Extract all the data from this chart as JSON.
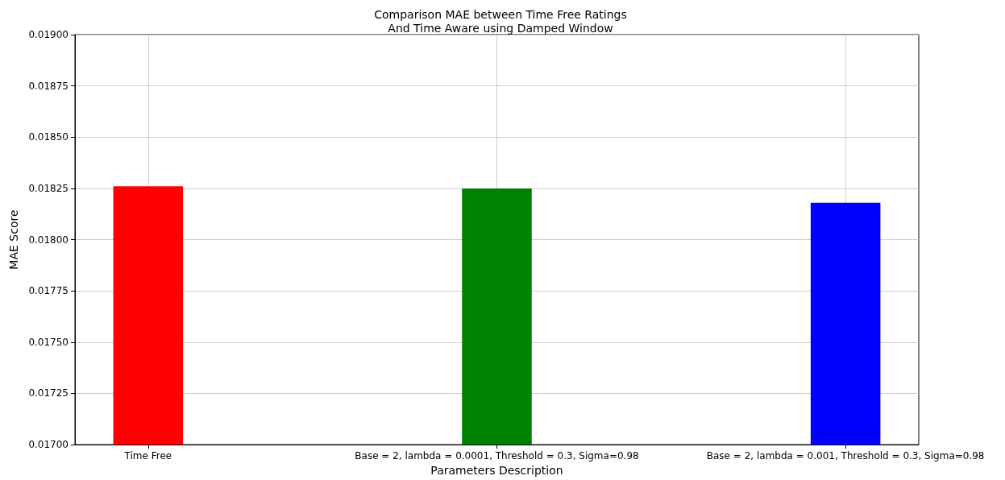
{
  "chart_data": {
    "type": "bar",
    "title": "Comparison MAE between Time Free Ratings\nAnd Time Aware using Damped Window",
    "xlabel": "Parameters Description",
    "ylabel": "MAE Score",
    "categories": [
      "Time Free",
      "Base = 2, lambda = 0.0001, Threshold = 0.3, Sigma=0.98",
      "Base = 2, lambda = 0.001, Threshold = 0.3, Sigma=0.98"
    ],
    "values": [
      0.01826,
      0.01825,
      0.01818
    ],
    "colors": [
      "#ff0000",
      "#008000",
      "#0000ff"
    ],
    "ylim": [
      0.017,
      0.019
    ],
    "yticks": [
      {
        "value": 0.017,
        "label": "0.01700"
      },
      {
        "value": 0.01725,
        "label": "0.01725"
      },
      {
        "value": 0.0175,
        "label": "0.01750"
      },
      {
        "value": 0.01775,
        "label": "0.01775"
      },
      {
        "value": 0.018,
        "label": "0.01800"
      },
      {
        "value": 0.01825,
        "label": "0.01825"
      },
      {
        "value": 0.0185,
        "label": "0.01850"
      },
      {
        "value": 0.01875,
        "label": "0.01875"
      },
      {
        "value": 0.019,
        "label": "0.01900"
      }
    ],
    "grid": true
  }
}
